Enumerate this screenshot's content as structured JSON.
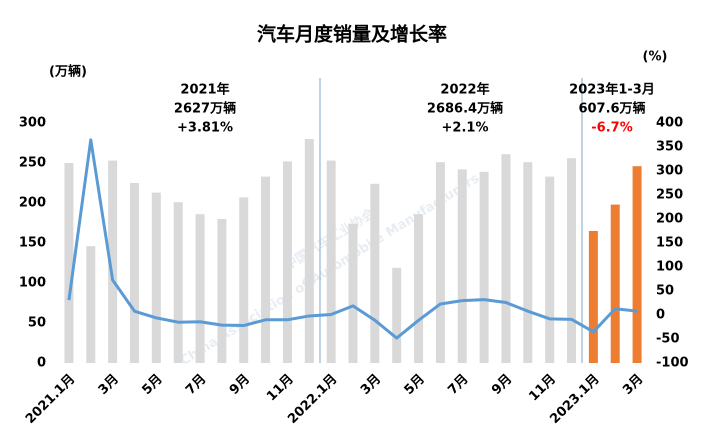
{
  "chart_data": {
    "type": "bar",
    "title": "汽车月度销量及增长率",
    "y_label": "(万辆)",
    "y2_label": "(%)",
    "watermark": [
      "中国汽车工业协会",
      "China Association of Automobile Manufacturers"
    ],
    "categories": [
      "2021.1月",
      null,
      "3月",
      null,
      "5月",
      null,
      "7月",
      null,
      "9月",
      null,
      "11月",
      null,
      "2022.1月",
      null,
      "3月",
      null,
      "5月",
      null,
      "7月",
      null,
      "9月",
      null,
      "11月",
      null,
      "2023.1月",
      null,
      "3月"
    ],
    "series": [
      {
        "type": "bar",
        "colors": [
          "#d9d9d9",
          "#d9d9d9",
          "#d9d9d9",
          "#d9d9d9",
          "#d9d9d9",
          "#d9d9d9",
          "#d9d9d9",
          "#d9d9d9",
          "#d9d9d9",
          "#d9d9d9",
          "#d9d9d9",
          "#d9d9d9",
          "#d9d9d9",
          "#d9d9d9",
          "#d9d9d9",
          "#d9d9d9",
          "#d9d9d9",
          "#d9d9d9",
          "#d9d9d9",
          "#d9d9d9",
          "#d9d9d9",
          "#d9d9d9",
          "#d9d9d9",
          "#d9d9d9",
          "#ed7d31",
          "#ed7d31",
          "#ed7d31"
        ],
        "values": [
          250,
          146,
          253,
          225,
          213,
          201,
          186,
          180,
          207,
          233,
          252,
          280,
          253,
          174,
          224,
          119,
          186,
          251,
          242,
          239,
          261,
          251,
          233,
          256,
          165,
          198,
          246
        ]
      },
      {
        "type": "line",
        "axis": "y2",
        "color": "#5b9bd5",
        "values": [
          31,
          365,
          73,
          8,
          -6,
          -15,
          -14,
          -21,
          -22,
          -10,
          -10,
          -2,
          1,
          19,
          -11,
          -48,
          -11,
          23,
          30,
          32,
          26,
          8,
          -8,
          -9,
          -35,
          13,
          8
        ]
      }
    ],
    "ylim": [
      0,
      300
    ],
    "yticks": [
      0,
      50,
      100,
      150,
      200,
      250,
      300
    ],
    "y2lim": [
      -100,
      400
    ],
    "y2ticks": [
      -100,
      -50,
      0,
      50,
      100,
      150,
      200,
      250,
      300,
      350,
      400
    ],
    "annotations": [
      {
        "lines": [
          {
            "text": "2021年",
            "color": "#000000"
          },
          {
            "text": "2627万辆",
            "color": "#000000"
          },
          {
            "text": "+3.81%",
            "color": "#000000"
          }
        ]
      },
      {
        "lines": [
          {
            "text": "2022年",
            "color": "#000000"
          },
          {
            "text": "2686.4万辆",
            "color": "#000000"
          },
          {
            "text": "+2.1%",
            "color": "#000000"
          }
        ]
      },
      {
        "lines": [
          {
            "text": "2023年1-3月",
            "color": "#000000"
          },
          {
            "text": "607.6万辆",
            "color": "#000000"
          },
          {
            "text": "-6.7%",
            "color": "#ff0000"
          }
        ]
      }
    ]
  }
}
